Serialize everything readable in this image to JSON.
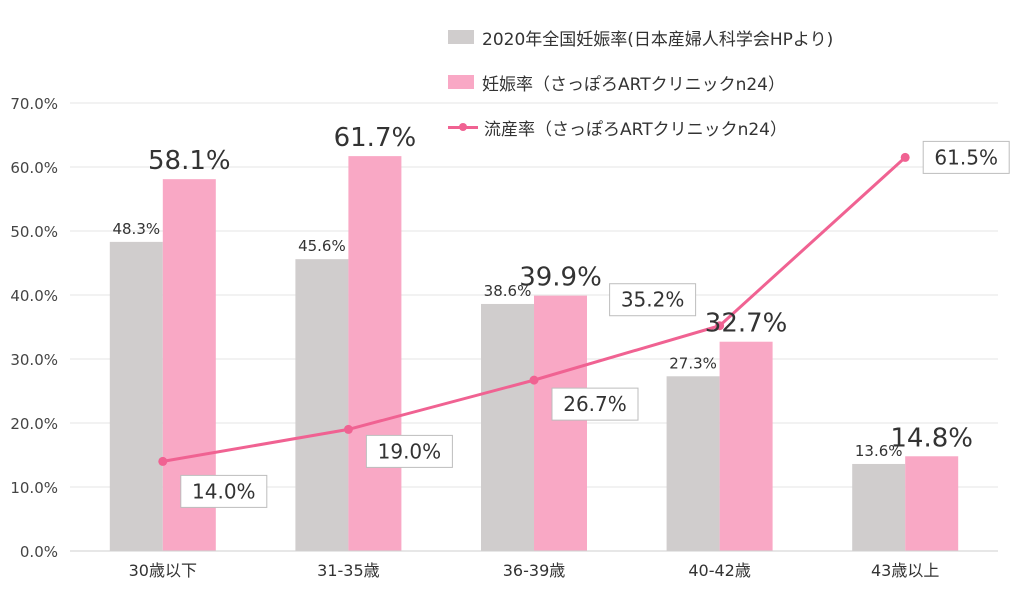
{
  "chart_data": {
    "type": "bar",
    "categories": [
      "30歳以下",
      "31-35歳",
      "36-39歳",
      "40-42歳",
      "43歳以上"
    ],
    "series": [
      {
        "name": "2020年全国妊娠率(日本産婦人科学会HPより)",
        "kind": "bar",
        "color": "#d0cdcd",
        "values": [
          48.3,
          45.6,
          38.6,
          27.3,
          13.6
        ],
        "labels": [
          "48.3%",
          "45.6%",
          "38.6%",
          "27.3%",
          "13.6%"
        ]
      },
      {
        "name": "妊娠率（さっぽろARTクリニックn24）",
        "kind": "bar",
        "color": "#f9a8c5",
        "values": [
          58.1,
          61.7,
          39.9,
          32.7,
          14.8
        ],
        "labels": [
          "58.1%",
          "61.7%",
          "39.9%",
          "32.7%",
          "14.8%"
        ]
      },
      {
        "name": "流産率（さっぽろARTクリニックn24）",
        "kind": "line",
        "color": "#f06292",
        "values": [
          14.0,
          19.0,
          26.7,
          35.2,
          61.5
        ],
        "labels": [
          "14.0%",
          "19.0%",
          "26.7%",
          "35.2%",
          "61.5%"
        ]
      }
    ],
    "ylim": [
      0,
      70
    ],
    "yticks": [
      "0.0%",
      "10.0%",
      "20.0%",
      "30.0%",
      "40.0%",
      "50.0%",
      "60.0%",
      "70.0%"
    ],
    "grid": true,
    "legend_position": "top-right"
  }
}
